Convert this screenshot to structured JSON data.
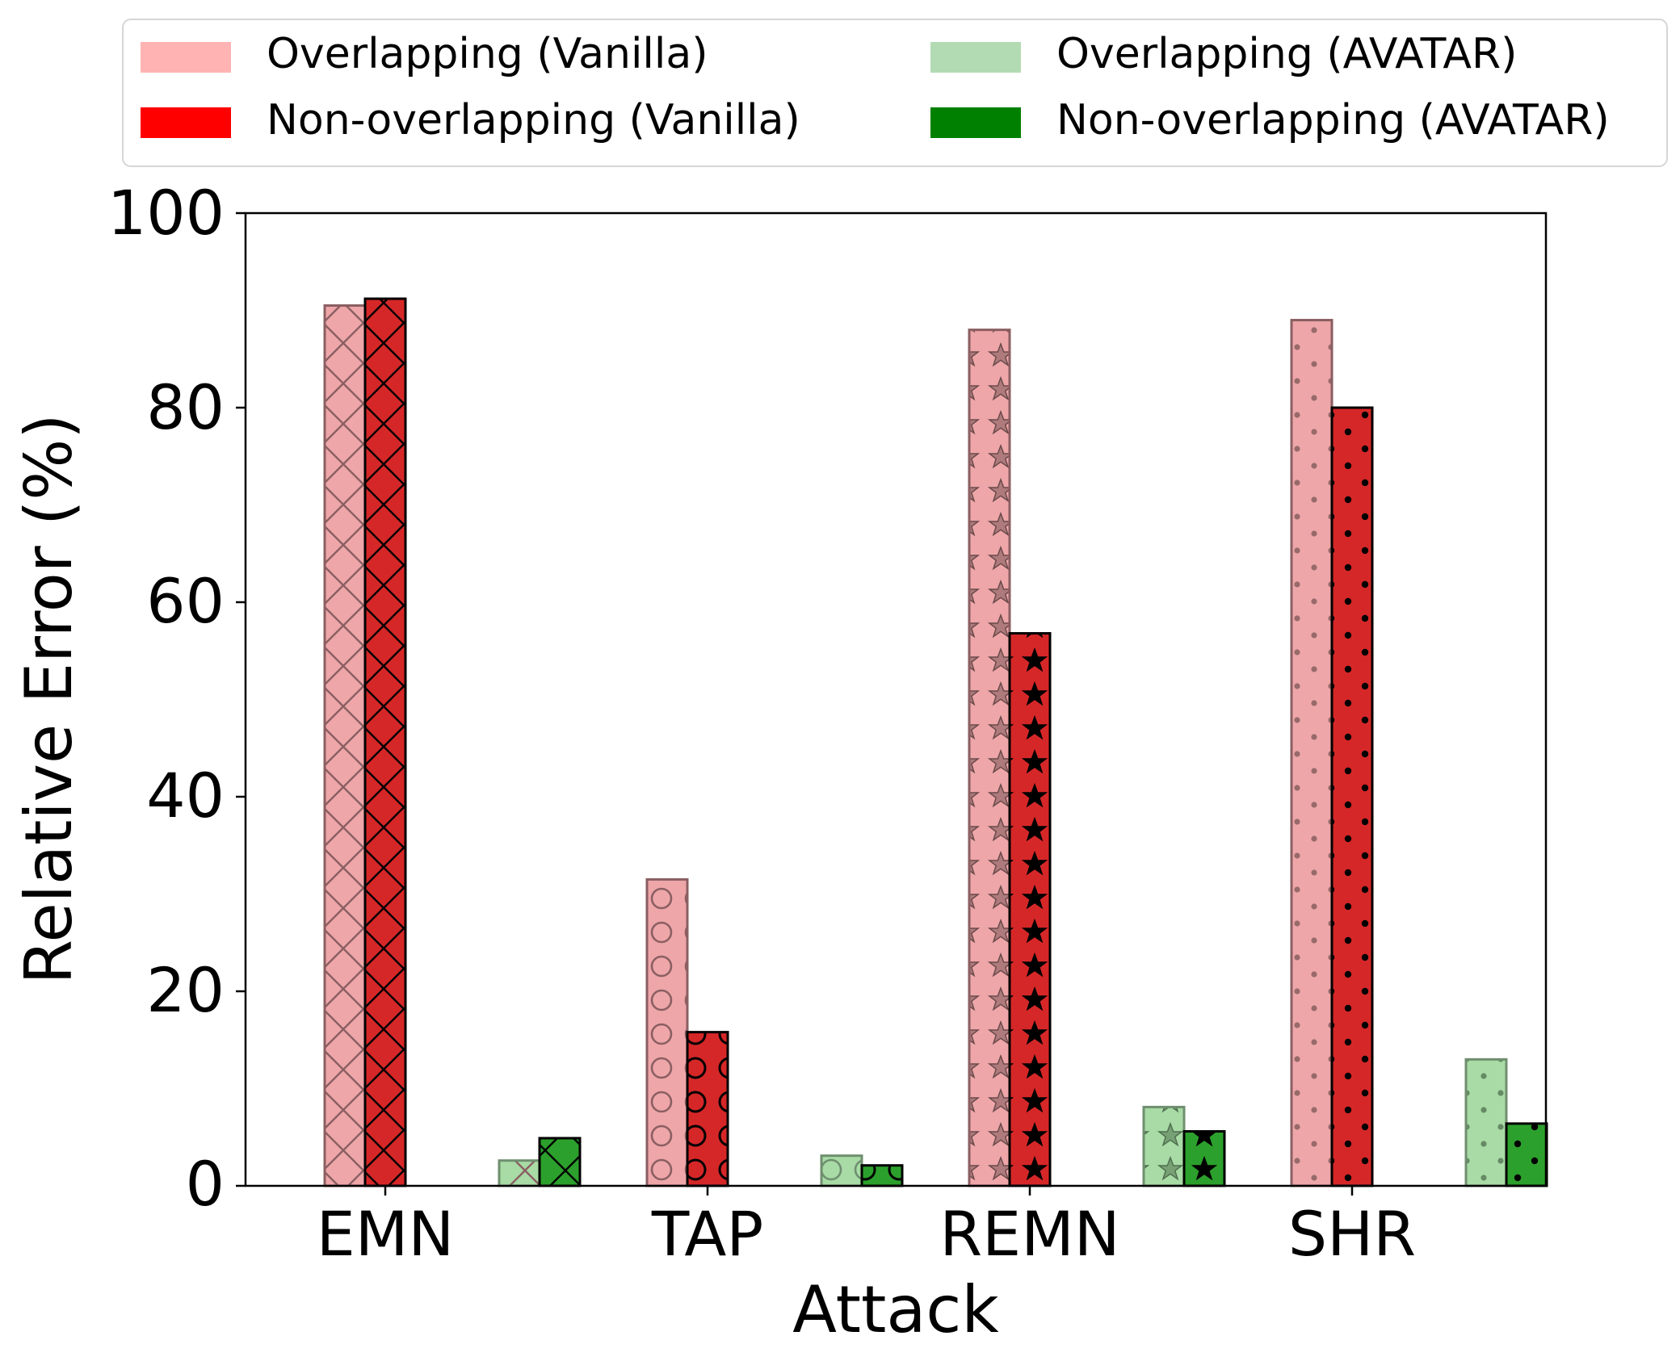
{
  "chart_data": {
    "type": "bar",
    "xlabel": "Attack",
    "ylabel": "Relative Error (%)",
    "ylim": [
      0,
      100
    ],
    "yticks": [
      "0",
      "20",
      "40",
      "60",
      "80",
      "100"
    ],
    "categories": [
      "EMN",
      "TAP",
      "REMN",
      "SHR"
    ],
    "legend": {
      "position": "top",
      "columns": 2
    },
    "series": [
      {
        "name": "Overlapping (Vanilla)",
        "values": [
          90.5,
          31.5,
          88.0,
          89.0
        ],
        "legend_color": "#ffb3b3",
        "bar_color": "#eea6a9",
        "edge_color": "#8b5f62"
      },
      {
        "name": "Non-overlapping (Vanilla)",
        "values": [
          91.2,
          15.8,
          56.8,
          80.0
        ],
        "legend_color": "#ff0000",
        "bar_color": "#d62728",
        "edge_color": "#000000"
      },
      {
        "name": "Overlapping (AVATAR)",
        "values": [
          2.6,
          3.1,
          8.1,
          13.0
        ],
        "legend_color": "#b3dbb3",
        "bar_color": "#a8dba5",
        "edge_color": "#6f8f6f"
      },
      {
        "name": "Non-overlapping (AVATAR)",
        "values": [
          4.9,
          2.1,
          5.6,
          6.4
        ],
        "legend_color": "#008000",
        "bar_color": "#2ca02c",
        "edge_color": "#000000"
      }
    ],
    "hatch_by_category": [
      "crosshatch",
      "circles",
      "stars",
      "dots"
    ]
  }
}
